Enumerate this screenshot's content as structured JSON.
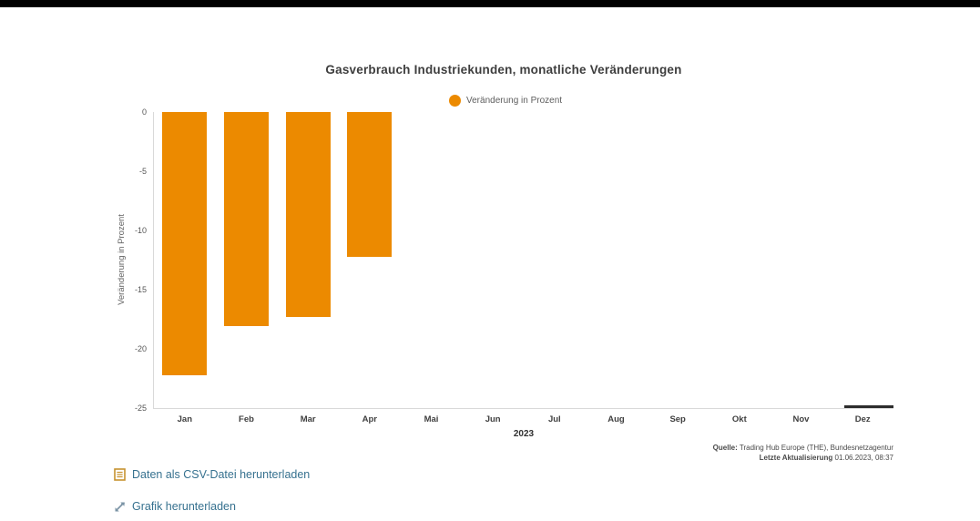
{
  "page": {
    "background": "#ffffff",
    "top_bar_color": "#000000"
  },
  "chart_data": {
    "type": "bar",
    "title": "Gasverbrauch Industriekunden, monatliche Veränderungen",
    "legend": [
      {
        "label": "Veränderung in Prozent",
        "color": "#ec8a00"
      }
    ],
    "legend_position": "top",
    "categories": [
      "Jan",
      "Feb",
      "Mar",
      "Apr",
      "Mai",
      "Jun",
      "Jul",
      "Aug",
      "Sep",
      "Okt",
      "Nov",
      "Dez"
    ],
    "values": [
      -22.2,
      -18.1,
      -17.3,
      -12.2,
      null,
      null,
      null,
      null,
      null,
      null,
      null,
      null
    ],
    "xlabel": "2023",
    "ylabel": "Veränderung in Prozent",
    "ylim": [
      -25,
      0
    ],
    "yticks": [
      0,
      -5,
      -10,
      -15,
      -20,
      -25
    ],
    "bar_color": "#ec8a00",
    "grid": false
  },
  "source": {
    "quelle_bold": "Quelle:",
    "quelle_rest": " Trading Hub Europe (THE), Bundesnetzagentur",
    "updated_bold": "Letzte Aktualisierung",
    "updated_rest": " 01.06.2023, 08:37"
  },
  "links": [
    {
      "label": "Daten als CSV-Datei herunterladen",
      "icon": "csv-file-icon",
      "color": "#36718f"
    },
    {
      "label": "Grafik herunterladen",
      "icon": "download-graphic-icon",
      "color": "#36718f"
    }
  ]
}
